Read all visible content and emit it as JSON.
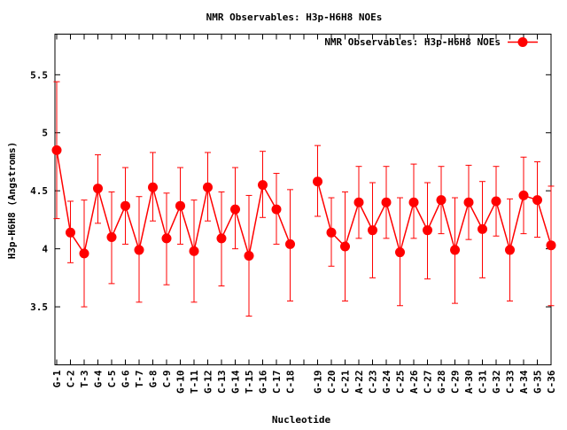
{
  "chart_data": {
    "type": "line",
    "title": "NMR Observables: H3p-H6H8 NOEs",
    "xlabel": "Nucleotide",
    "ylabel": "H3p-H6H8 (Angstroms)",
    "ylim": [
      3.0,
      5.85
    ],
    "yticks": [
      "3.5",
      "4",
      "4.5",
      "5",
      "5.5"
    ],
    "ytick_values": [
      3.5,
      4.0,
      4.5,
      5.0,
      5.5
    ],
    "grid": false,
    "legend_position": "top-right",
    "categories": [
      "G-1",
      "C-2",
      "T-3",
      "G-4",
      "C-5",
      "G-6",
      "T-7",
      "G-8",
      "C-9",
      "G-10",
      "T-11",
      "G-12",
      "C-13",
      "G-14",
      "T-15",
      "G-16",
      "C-17",
      "C-18",
      "",
      "G-19",
      "C-20",
      "C-21",
      "A-22",
      "C-23",
      "G-24",
      "C-25",
      "A-26",
      "C-27",
      "G-28",
      "C-29",
      "A-30",
      "C-31",
      "G-32",
      "C-33",
      "A-34",
      "G-35",
      "C-36"
    ],
    "series": [
      {
        "name": "NMR Observables: H3p-H6H8 NOEs",
        "color": "#ff0000",
        "values": [
          4.85,
          4.14,
          3.96,
          4.52,
          4.1,
          4.37,
          3.99,
          4.53,
          4.09,
          4.37,
          3.98,
          4.53,
          4.09,
          4.34,
          3.94,
          4.55,
          4.34,
          4.04,
          null,
          4.58,
          4.14,
          4.02,
          4.4,
          4.16,
          4.4,
          3.97,
          4.4,
          4.16,
          4.42,
          3.99,
          4.4,
          4.17,
          4.41,
          3.99,
          4.46,
          4.42,
          4.03
        ],
        "error_low": [
          4.26,
          3.88,
          3.5,
          4.22,
          3.7,
          4.04,
          3.54,
          4.24,
          3.69,
          4.04,
          3.54,
          4.24,
          3.68,
          4.0,
          3.42,
          4.27,
          4.04,
          3.55,
          null,
          4.28,
          3.85,
          3.55,
          4.09,
          3.75,
          4.09,
          3.51,
          4.09,
          3.74,
          4.13,
          3.53,
          4.08,
          3.75,
          4.11,
          3.55,
          4.13,
          4.1,
          3.51
        ],
        "error_high": [
          5.44,
          4.41,
          4.42,
          4.81,
          4.49,
          4.7,
          4.45,
          4.83,
          4.48,
          4.7,
          4.42,
          4.83,
          4.49,
          4.7,
          4.46,
          4.84,
          4.65,
          4.51,
          null,
          4.89,
          4.44,
          4.49,
          4.71,
          4.57,
          4.71,
          4.44,
          4.73,
          4.57,
          4.71,
          4.44,
          4.72,
          4.58,
          4.71,
          4.43,
          4.79,
          4.75,
          4.54
        ]
      }
    ]
  }
}
